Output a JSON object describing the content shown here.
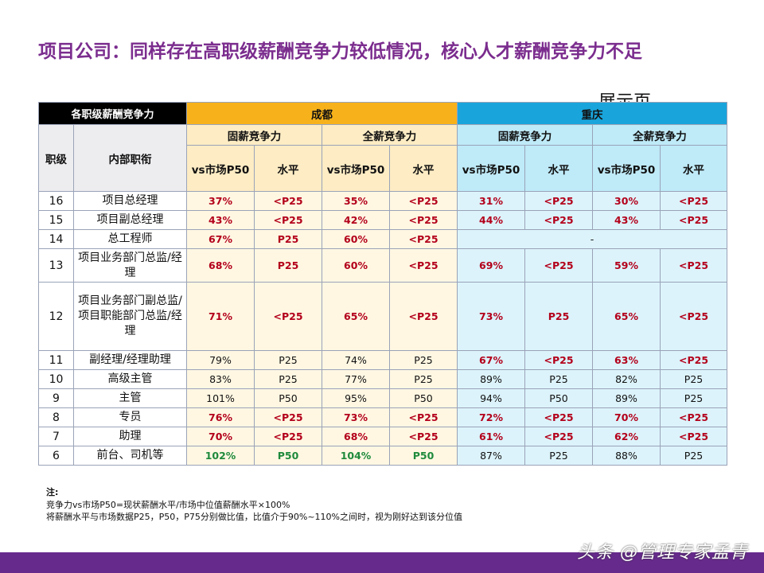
{
  "title": "项目公司：同样存在高职级薪酬竞争力较低情况，核心人才薪酬竞争力不足",
  "stamp": "展示页",
  "table": {
    "corner": "各职级薪酬竞争力",
    "col_grade": "职级",
    "col_title": "内部职衔",
    "cities": [
      "成都",
      "重庆"
    ],
    "groups": [
      "固薪竞争力",
      "全薪竞争力",
      "固薪竞争力",
      "全薪竞争力"
    ],
    "metrics": [
      "vs市场P50",
      "水平",
      "vs市场P50",
      "水平",
      "vs市场P50",
      "水平",
      "vs市场P50",
      "水平"
    ],
    "rows": [
      {
        "grade": "16",
        "title": "项目总经理",
        "cells": [
          "37%",
          "<P25",
          "35%",
          "<P25",
          "31%",
          "<P25",
          "30%",
          "<P25"
        ],
        "colors": [
          "red",
          "red",
          "red",
          "red",
          "red",
          "red",
          "red",
          "red"
        ]
      },
      {
        "grade": "15",
        "title": "项目副总经理",
        "cells": [
          "43%",
          "<P25",
          "42%",
          "<P25",
          "44%",
          "<P25",
          "43%",
          "<P25"
        ],
        "colors": [
          "red",
          "red",
          "red",
          "red",
          "red",
          "red",
          "red",
          "red"
        ]
      },
      {
        "grade": "14",
        "title": "总工程师",
        "cells": [
          "67%",
          "P25",
          "60%",
          "<P25"
        ],
        "colors": [
          "red",
          "red",
          "red",
          "red"
        ],
        "merged_cq": "-"
      },
      {
        "grade": "13",
        "title": "项目业务部门总监/经理",
        "cells": [
          "68%",
          "P25",
          "60%",
          "<P25",
          "69%",
          "<P25",
          "59%",
          "<P25"
        ],
        "colors": [
          "red",
          "red",
          "red",
          "red",
          "red",
          "red",
          "red",
          "red"
        ]
      },
      {
        "grade": "12",
        "title": "项目业务部门副总监/项目职能部门总监/经理",
        "cells": [
          "71%",
          "<P25",
          "65%",
          "<P25",
          "73%",
          "P25",
          "65%",
          "<P25"
        ],
        "colors": [
          "red",
          "red",
          "red",
          "red",
          "red",
          "red",
          "red",
          "red"
        ]
      },
      {
        "grade": "11",
        "title": "副经理/经理助理",
        "cells": [
          "79%",
          "P25",
          "74%",
          "P25",
          "67%",
          "<P25",
          "63%",
          "<P25"
        ],
        "colors": [
          "plain",
          "plain",
          "plain",
          "plain",
          "red",
          "red",
          "red",
          "red"
        ]
      },
      {
        "grade": "10",
        "title": "高级主管",
        "cells": [
          "83%",
          "P25",
          "77%",
          "P25",
          "89%",
          "P25",
          "82%",
          "P25"
        ],
        "colors": [
          "plain",
          "plain",
          "plain",
          "plain",
          "plain",
          "plain",
          "plain",
          "plain"
        ]
      },
      {
        "grade": "9",
        "title": "主管",
        "cells": [
          "101%",
          "P50",
          "95%",
          "P50",
          "94%",
          "P50",
          "89%",
          "P25"
        ],
        "colors": [
          "plain",
          "plain",
          "plain",
          "plain",
          "plain",
          "plain",
          "plain",
          "plain"
        ]
      },
      {
        "grade": "8",
        "title": "专员",
        "cells": [
          "76%",
          "<P25",
          "73%",
          "<P25",
          "72%",
          "<P25",
          "70%",
          "<P25"
        ],
        "colors": [
          "red",
          "red",
          "red",
          "red",
          "red",
          "red",
          "red",
          "red"
        ]
      },
      {
        "grade": "7",
        "title": "助理",
        "cells": [
          "70%",
          "<P25",
          "68%",
          "<P25",
          "61%",
          "<P25",
          "62%",
          "<P25"
        ],
        "colors": [
          "red",
          "red",
          "red",
          "red",
          "red",
          "red",
          "red",
          "red"
        ]
      },
      {
        "grade": "6",
        "title": "前台、司机等",
        "cells": [
          "102%",
          "P50",
          "104%",
          "P50",
          "87%",
          "P25",
          "88%",
          "P25"
        ],
        "colors": [
          "green",
          "green",
          "green",
          "green",
          "plain",
          "plain",
          "plain",
          "plain"
        ]
      }
    ]
  },
  "notes": {
    "label": "注:",
    "line1": "竞争力vs市场P50=现状薪酬水平/市场中位值薪酬水平×100%",
    "line2": "将薪酬水平与市场数据P25，P50，P75分别做比值，比值介于90%~110%之间时，视为刚好达到该分位值"
  },
  "watermark": "头条 @管理专家孟青",
  "colors": {
    "title": "#7b2d8e",
    "chengdu_header": "#f7b21b",
    "chongqing_header": "#19a5dc",
    "red_text": "#b3001b",
    "green_text": "#1e8a3c",
    "footer_band": "#662a8c"
  }
}
